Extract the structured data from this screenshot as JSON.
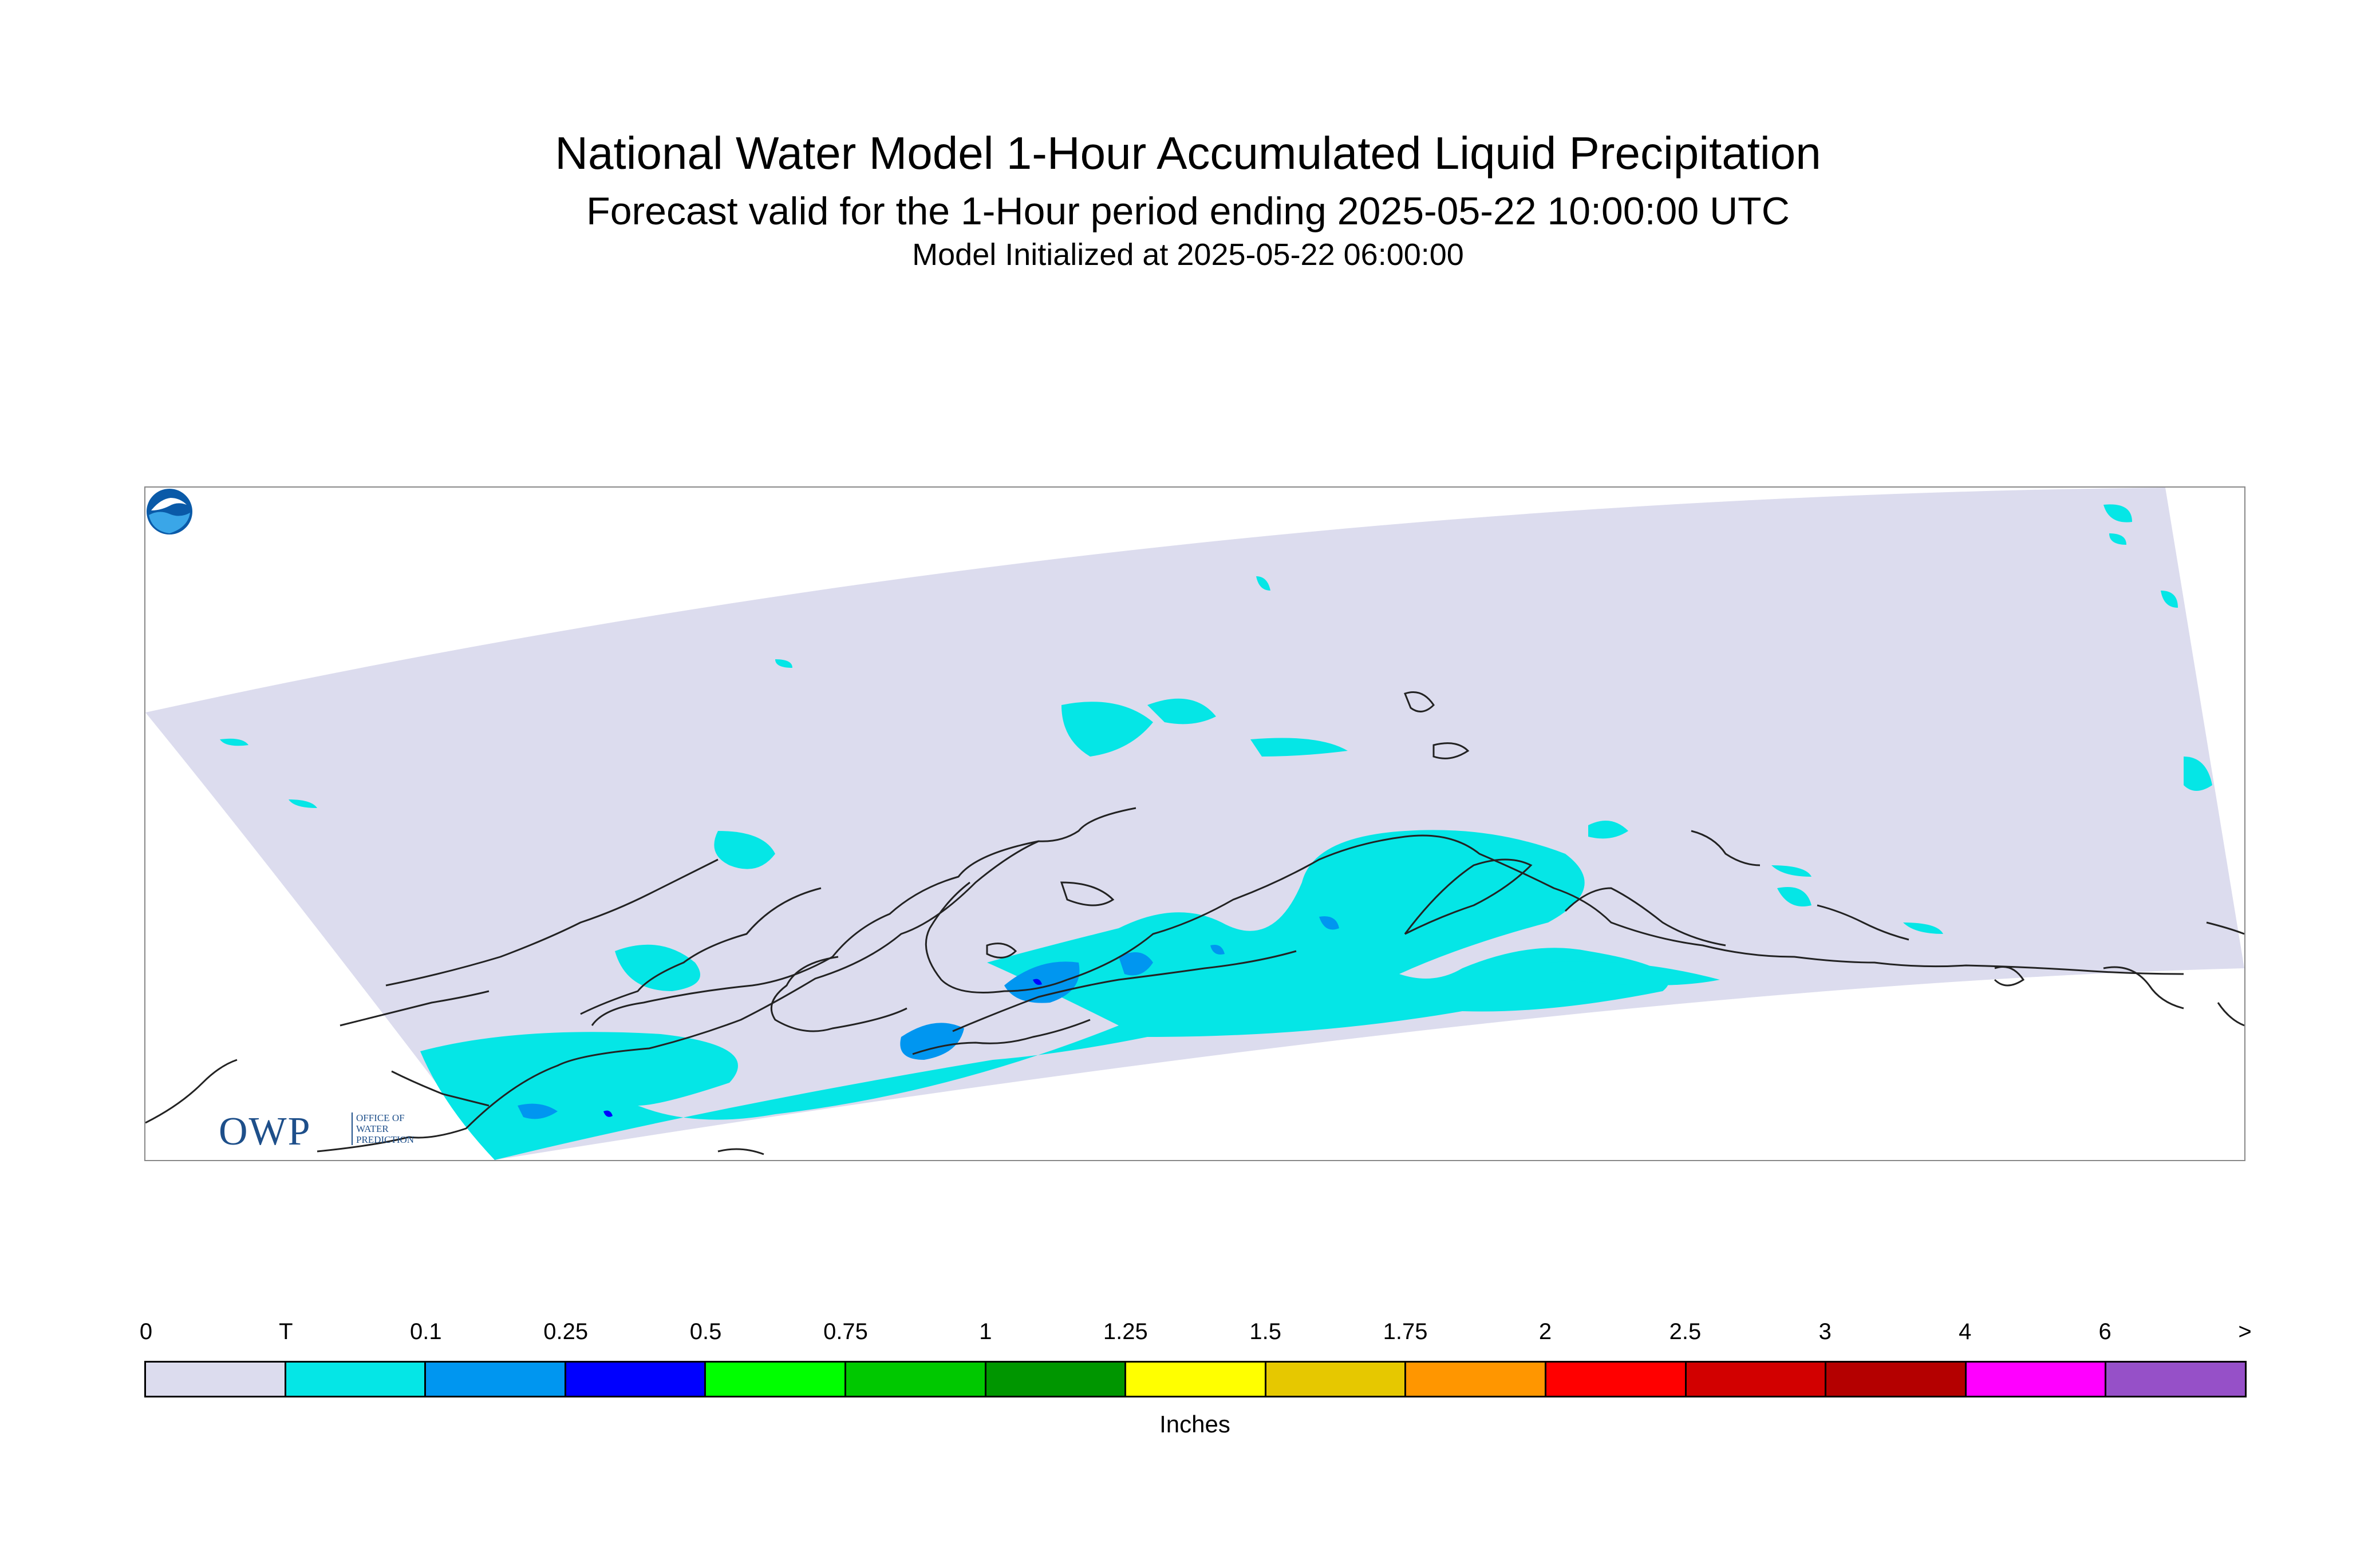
{
  "title": {
    "line1": "National Water Model 1-Hour Accumulated Liquid Precipitation",
    "line2": "Forecast valid for the 1-Hour period ending 2025-05-22 10:00:00 UTC",
    "line3": "Model Initialized at 2025-05-22 06:00:00"
  },
  "map": {
    "domain_fill": "#dcdcee",
    "coast_color": "#222222",
    "precip_colors": {
      "trace": "#05e6e6",
      "p01": "#0096f0",
      "p025": "#0000ff"
    }
  },
  "logos": {
    "owp_main": "OWP",
    "owp_sub": [
      "OFFICE OF",
      "WATER",
      "PREDICTION"
    ],
    "noaa_icon": "noaa-icon"
  },
  "legend": {
    "ticks": [
      "0",
      "T",
      "0.1",
      "0.25",
      "0.5",
      "0.75",
      "1",
      "1.25",
      "1.5",
      "1.75",
      "2",
      "2.5",
      "3",
      "4",
      "6",
      ">"
    ],
    "colors": [
      "#dcdcee",
      "#05e6e6",
      "#0096f0",
      "#0000ff",
      "#00ff00",
      "#00c800",
      "#009600",
      "#ffff00",
      "#e6c800",
      "#ff9600",
      "#ff0000",
      "#d20000",
      "#b40000",
      "#ff00ff",
      "#9650c8"
    ],
    "units": "Inches"
  }
}
